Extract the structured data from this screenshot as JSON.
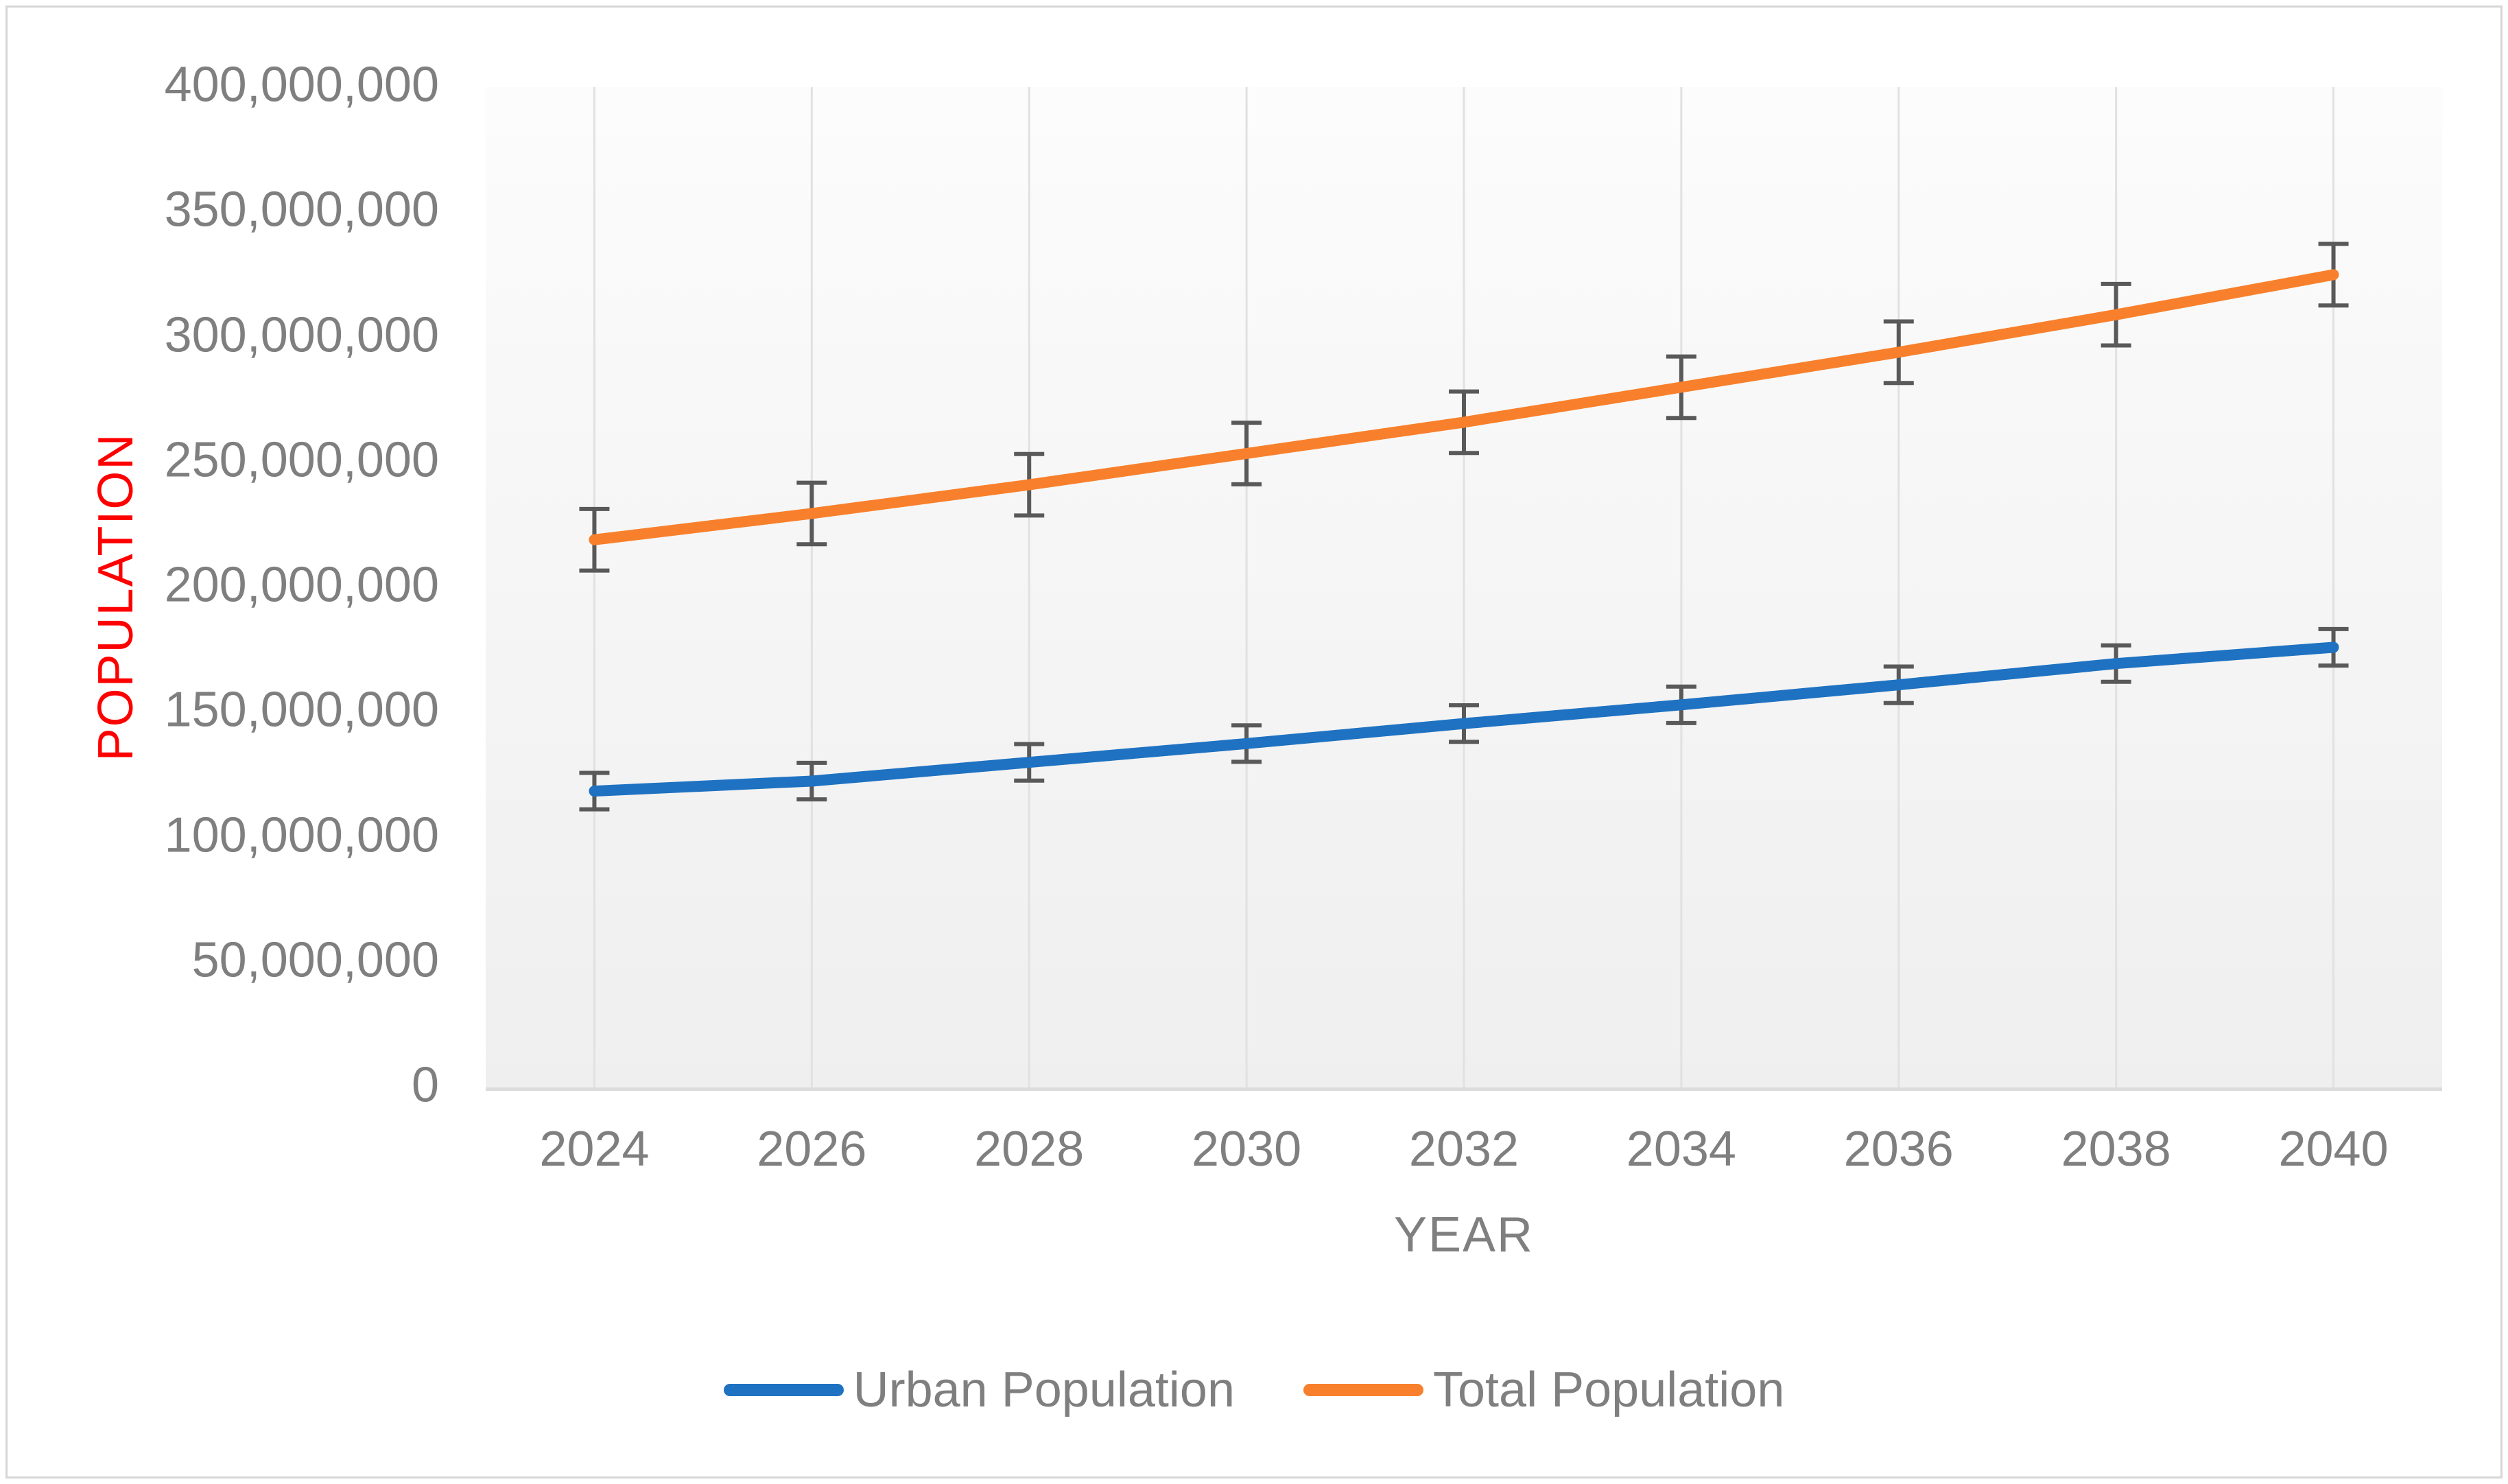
{
  "chart_data": {
    "type": "line",
    "title": "",
    "xlabel": "YEAR",
    "ylabel": "POPULATION",
    "categories": [
      "2024",
      "2026",
      "2028",
      "2030",
      "2032",
      "2034",
      "2036",
      "2038",
      "2040"
    ],
    "series": [
      {
        "name": "Urban Population",
        "color": "#1f72c1",
        "values": [
          118500000,
          122500000,
          130000000,
          137500000,
          145500000,
          153000000,
          161000000,
          169500000,
          176000000
        ],
        "error": 7300000
      },
      {
        "name": "Total Population",
        "color": "#f8802c",
        "values": [
          219000000,
          229500000,
          241000000,
          253500000,
          266000000,
          280000000,
          294000000,
          309000000,
          325000000
        ],
        "error": 12300000
      }
    ],
    "ylim": [
      0,
      400000000
    ],
    "ytick_interval": 50000000,
    "ytick_labels_top_to_bottom": [
      "400,000,000",
      "350,000,000",
      "300,000,000",
      "250,000,000",
      "200,000,000",
      "150,000,000",
      "100,000,000",
      "50,000,000",
      "0"
    ],
    "grid": "vertical-only",
    "legend_position": "bottom"
  },
  "axes": {
    "x_title": "YEAR",
    "y_title": "POPULATION",
    "y_title_color": "#ff0000",
    "tick_label_color": "#7f7f7f"
  },
  "style_colors": {
    "gridline": "#e1e1e1",
    "error_bar": "#595959",
    "plot_border": "#dcdcdc",
    "frame_border": "#d6d6d6"
  }
}
